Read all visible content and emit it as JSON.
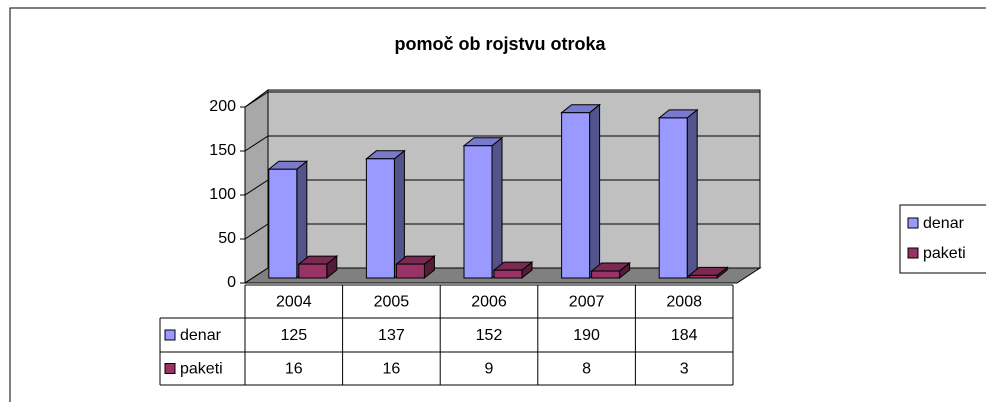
{
  "chart_data": {
    "type": "bar3d",
    "title": "pomoč ob rojstvu otroka",
    "categories": [
      "2004",
      "2005",
      "2006",
      "2007",
      "2008"
    ],
    "series": [
      {
        "name": "denar",
        "color": "#9999ff",
        "values": [
          125,
          137,
          152,
          190,
          184
        ]
      },
      {
        "name": "paketi",
        "color": "#993366",
        "values": [
          16,
          16,
          9,
          8,
          3
        ]
      }
    ],
    "ylim": [
      0,
      200
    ],
    "yticks": [
      0,
      50,
      100,
      150,
      200
    ],
    "grid": true,
    "legend": "right",
    "data_table": true
  }
}
